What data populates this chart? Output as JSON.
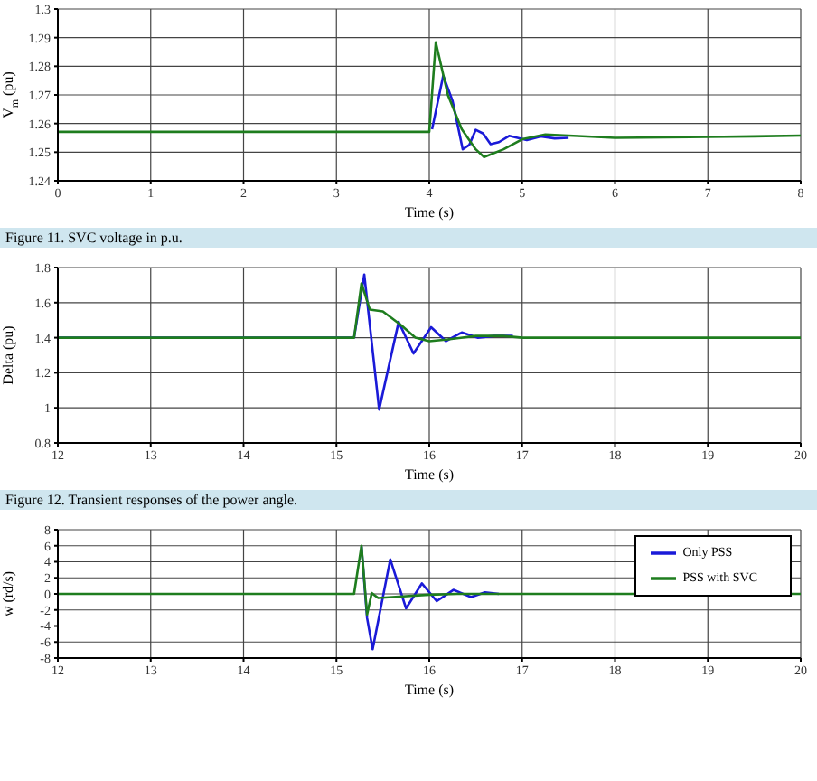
{
  "chart_data": [
    {
      "type": "line",
      "xlabel": "Time (s)",
      "ylabel": "V$_{m}$ (pu)",
      "xlim": [
        0,
        8
      ],
      "xticks": [
        0,
        1,
        2,
        3,
        4,
        5,
        6,
        7,
        8
      ],
      "ylim": [
        1.24,
        1.3
      ],
      "yticks": [
        1.24,
        1.25,
        1.26,
        1.27,
        1.28,
        1.29,
        1.3
      ],
      "grid": true,
      "legend": false,
      "annotations": [
        "Figure 11. SVC voltage in p.u."
      ],
      "series": [
        {
          "color": "#1a1ad8",
          "x": [
            4.03,
            4.15,
            4.25,
            4.36,
            4.43,
            4.5,
            4.58,
            4.66,
            4.75,
            4.86,
            4.95,
            5.05,
            5.2,
            5.35,
            5.5
          ],
          "values": [
            1.258,
            1.2767,
            1.268,
            1.251,
            1.2525,
            1.2578,
            1.2565,
            1.2528,
            1.2535,
            1.2557,
            1.255,
            1.2542,
            1.2555,
            1.2548,
            1.255
          ]
        },
        {
          "color": "#1e7d1e",
          "x": [
            0,
            4.0,
            4.07,
            4.2,
            4.35,
            4.5,
            4.59,
            4.8,
            5.0,
            5.25,
            5.5,
            6.0,
            7.0,
            7.5,
            8.0
          ],
          "values": [
            1.2571,
            1.2571,
            1.2884,
            1.27,
            1.258,
            1.251,
            1.2483,
            1.251,
            1.2545,
            1.2562,
            1.2558,
            1.255,
            1.2553,
            1.2555,
            1.2558
          ]
        }
      ]
    },
    {
      "type": "line",
      "xlabel": "Time (s)",
      "ylabel": "Delta (pu)",
      "xlim": [
        12,
        20
      ],
      "xticks": [
        12,
        13,
        14,
        15,
        16,
        17,
        18,
        19,
        20
      ],
      "ylim": [
        0.8,
        1.8
      ],
      "yticks": [
        0.8,
        1,
        1.2,
        1.4,
        1.6,
        1.8
      ],
      "grid": true,
      "legend": false,
      "annotations": [
        "Figure 12. Transient responses of the power angle."
      ],
      "series": [
        {
          "color": "#1a1ad8",
          "x": [
            12,
            15.19,
            15.3,
            15.46,
            15.67,
            15.83,
            16.02,
            16.18,
            16.35,
            16.52,
            16.7,
            16.9
          ],
          "values": [
            1.4,
            1.4,
            1.76,
            0.99,
            1.49,
            1.31,
            1.46,
            1.38,
            1.43,
            1.4,
            1.41,
            1.41
          ]
        },
        {
          "color": "#1e7d1e",
          "x": [
            12,
            15.19,
            15.27,
            15.36,
            15.5,
            15.7,
            15.85,
            16.0,
            16.2,
            16.5,
            16.8,
            17.0,
            20
          ],
          "values": [
            1.4,
            1.4,
            1.71,
            1.56,
            1.55,
            1.47,
            1.4,
            1.38,
            1.39,
            1.41,
            1.41,
            1.4,
            1.4
          ]
        }
      ]
    },
    {
      "type": "line",
      "xlabel": "Time (s)",
      "ylabel": "w (rd/s)",
      "xlim": [
        12,
        20
      ],
      "xticks": [
        12,
        13,
        14,
        15,
        16,
        17,
        18,
        19,
        20
      ],
      "ylim": [
        -8,
        8
      ],
      "yticks": [
        -8,
        -6,
        -4,
        -2,
        0,
        2,
        4,
        6,
        8
      ],
      "grid": true,
      "legend": "top right",
      "series": [
        {
          "name": "Only PSS",
          "color": "#1a1ad8",
          "x": [
            15.27,
            15.33,
            15.39,
            15.58,
            15.75,
            15.92,
            16.08,
            16.26,
            16.45,
            16.6,
            16.75
          ],
          "values": [
            5.9,
            -3,
            -6.9,
            4.3,
            -1.8,
            1.3,
            -0.9,
            0.5,
            -0.4,
            0.2,
            0
          ]
        },
        {
          "name": "PSS with SVC",
          "color": "#1e7d1e",
          "x": [
            12,
            15.19,
            15.27,
            15.33,
            15.38,
            15.45,
            15.6,
            16.0,
            16.3,
            20
          ],
          "values": [
            0,
            0,
            6,
            -2.6,
            0.1,
            -0.5,
            -0.4,
            -0.1,
            0,
            0
          ]
        }
      ]
    }
  ]
}
